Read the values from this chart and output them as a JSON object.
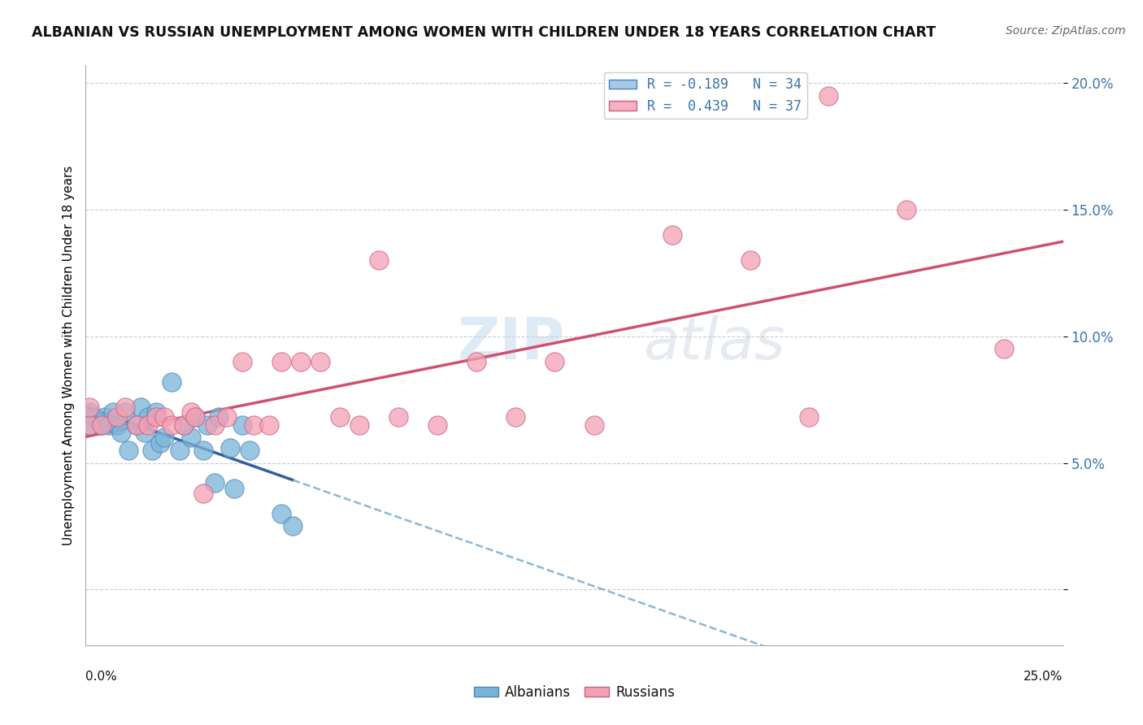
{
  "title": "ALBANIAN VS RUSSIAN UNEMPLOYMENT AMONG WOMEN WITH CHILDREN UNDER 18 YEARS CORRELATION CHART",
  "source": "Source: ZipAtlas.com",
  "ylabel": "Unemployment Among Women with Children Under 18 years",
  "xlim": [
    0.0,
    0.25
  ],
  "ylim": [
    -0.022,
    0.207
  ],
  "yticks": [
    0.0,
    0.05,
    0.1,
    0.15,
    0.2
  ],
  "ytick_labels": [
    "",
    "5.0%",
    "10.0%",
    "15.0%",
    "20.0%"
  ],
  "legend_r_items": [
    {
      "label": "R = -0.189   N = 34",
      "color": "#a8c8e8"
    },
    {
      "label": "R =  0.439   N = 37",
      "color": "#f8b0c0"
    }
  ],
  "albanian_x": [
    0.001,
    0.001,
    0.002,
    0.004,
    0.005,
    0.006,
    0.007,
    0.008,
    0.009,
    0.01,
    0.011,
    0.013,
    0.014,
    0.015,
    0.016,
    0.017,
    0.018,
    0.019,
    0.02,
    0.022,
    0.024,
    0.025,
    0.027,
    0.028,
    0.03,
    0.031,
    0.033,
    0.034,
    0.037,
    0.038,
    0.04,
    0.042,
    0.05,
    0.053
  ],
  "albanian_y": [
    0.065,
    0.07,
    0.068,
    0.065,
    0.068,
    0.065,
    0.07,
    0.065,
    0.062,
    0.07,
    0.055,
    0.065,
    0.072,
    0.062,
    0.068,
    0.055,
    0.07,
    0.058,
    0.06,
    0.082,
    0.055,
    0.065,
    0.06,
    0.068,
    0.055,
    0.065,
    0.042,
    0.068,
    0.056,
    0.04,
    0.065,
    0.055,
    0.03,
    0.025
  ],
  "russian_x": [
    0.001,
    0.001,
    0.004,
    0.008,
    0.01,
    0.013,
    0.016,
    0.018,
    0.02,
    0.022,
    0.025,
    0.027,
    0.028,
    0.03,
    0.033,
    0.036,
    0.04,
    0.043,
    0.047,
    0.05,
    0.055,
    0.06,
    0.065,
    0.07,
    0.075,
    0.08,
    0.09,
    0.1,
    0.11,
    0.12,
    0.13,
    0.15,
    0.17,
    0.185,
    0.19,
    0.21,
    0.235
  ],
  "russian_y": [
    0.065,
    0.072,
    0.065,
    0.068,
    0.072,
    0.065,
    0.065,
    0.068,
    0.068,
    0.065,
    0.065,
    0.07,
    0.068,
    0.038,
    0.065,
    0.068,
    0.09,
    0.065,
    0.065,
    0.09,
    0.09,
    0.09,
    0.068,
    0.065,
    0.13,
    0.068,
    0.065,
    0.09,
    0.068,
    0.09,
    0.065,
    0.14,
    0.13,
    0.068,
    0.195,
    0.15,
    0.095
  ],
  "albanian_color": "#7ab4d8",
  "albanian_edge": "#4a84b8",
  "russian_color": "#f4a0b4",
  "russian_edge": "#c86080",
  "trend_albanian_solid_color": "#3060a0",
  "trend_albanian_dash_color": "#88b8d8",
  "trend_russian_color": "#d05070",
  "watermark_text": "ZIPatlas",
  "background_color": "#ffffff",
  "grid_color": "#cccccc"
}
